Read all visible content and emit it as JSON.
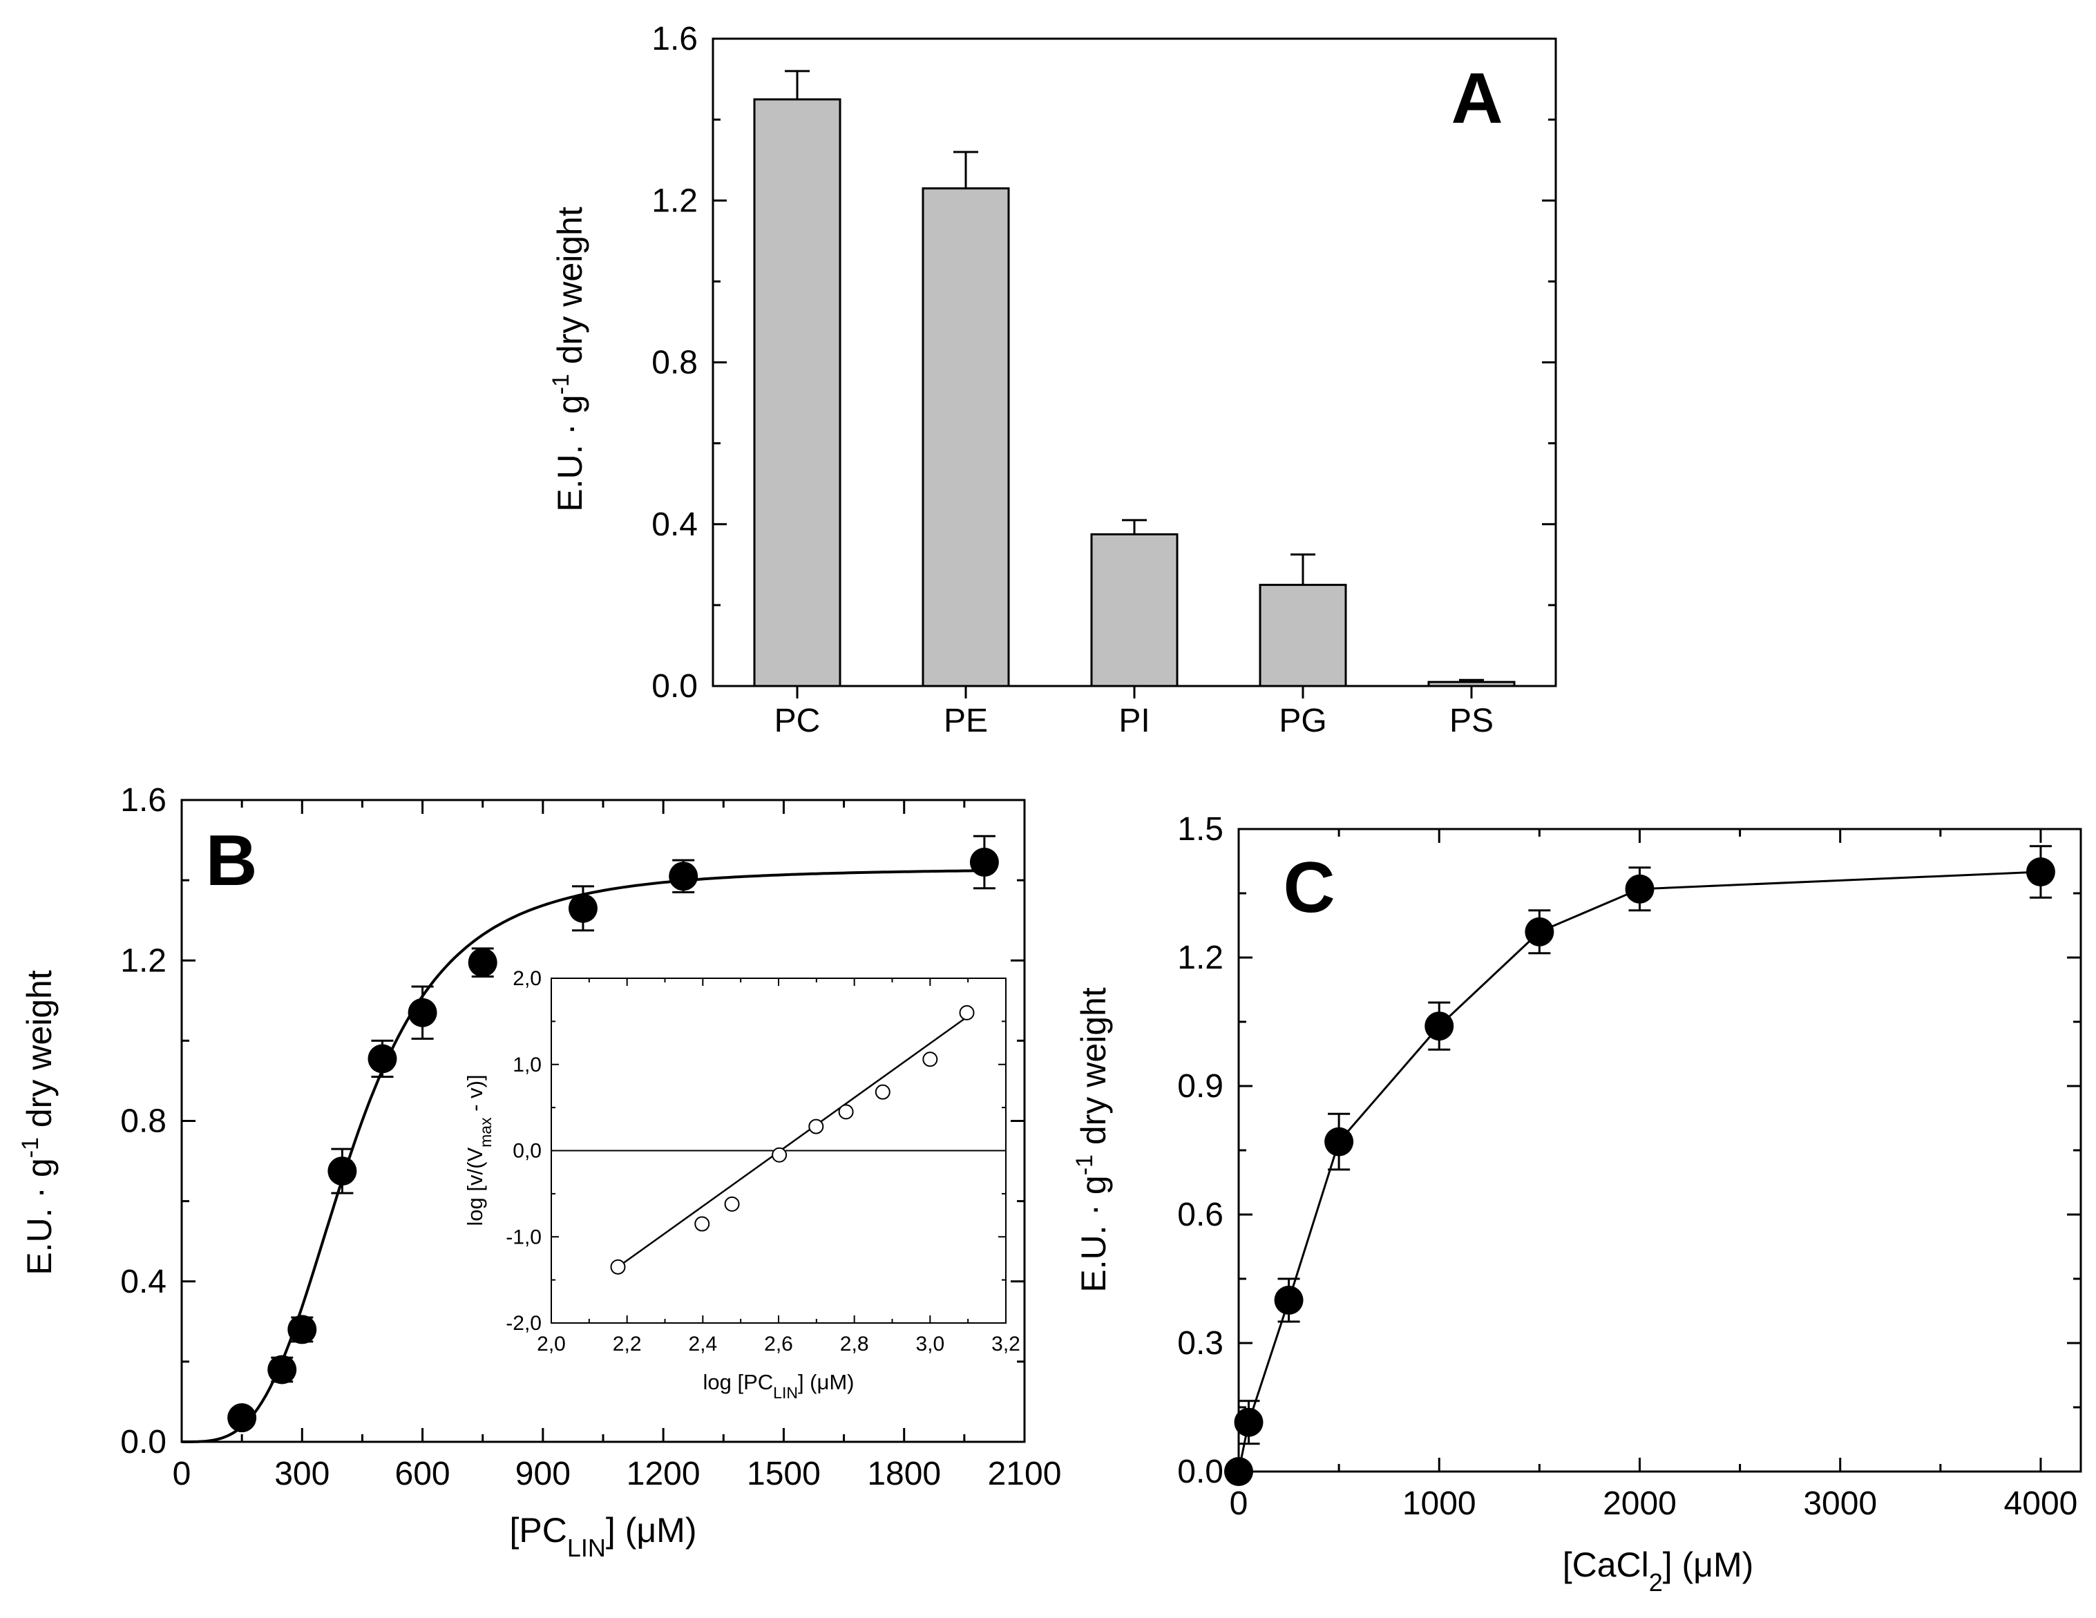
{
  "chart_data": [
    {
      "type": "bar",
      "panel": "A",
      "categories": [
        "PC",
        "PE",
        "PI",
        "PG",
        "PS"
      ],
      "values": [
        1.45,
        1.23,
        0.375,
        0.25,
        0.01
      ],
      "errors": [
        0.07,
        0.09,
        0.035,
        0.075,
        0.005
      ],
      "ylabel": "E.U. · g-1 dry weight",
      "ylabel_parts": {
        "main": "E.U. · g",
        "sup": "-1",
        "rest": " dry weight"
      },
      "ylim": [
        0.0,
        1.6
      ],
      "yticks": [
        "0.0",
        "0.4",
        "0.8",
        "1.2",
        "1.6"
      ],
      "bar_color": "#c0c0c0"
    },
    {
      "type": "scatter",
      "panel": "B",
      "x": [
        150,
        250,
        300,
        400,
        500,
        600,
        750,
        1000,
        1250,
        2000
      ],
      "y": [
        0.06,
        0.18,
        0.28,
        0.675,
        0.955,
        1.07,
        1.195,
        1.33,
        1.41,
        1.445
      ],
      "errors": [
        0.02,
        0.03,
        0.03,
        0.055,
        0.045,
        0.065,
        0.035,
        0.055,
        0.04,
        0.065
      ],
      "fit": {
        "model": "hill",
        "vmax": 1.43,
        "k": 420,
        "n": 3.5
      },
      "xlabel_parts": {
        "main": "[PC",
        "sub": "LIN",
        "rest": "] (μM)"
      },
      "ylabel_parts": {
        "main": "E.U. · g",
        "sup": "-1",
        "rest": " dry weight"
      },
      "xlim": [
        0,
        2100
      ],
      "ylim": [
        0.0,
        1.6
      ],
      "xticks": [
        "0",
        "300",
        "600",
        "900",
        "1200",
        "1500",
        "1800",
        "2100"
      ],
      "yticks": [
        "0.0",
        "0.4",
        "0.8",
        "1.2",
        "1.6"
      ],
      "inset": {
        "type": "scatter",
        "x": [
          2.176,
          2.398,
          2.477,
          2.602,
          2.699,
          2.778,
          2.875,
          3.0,
          3.097
        ],
        "y": [
          -1.35,
          -0.85,
          -0.62,
          -0.05,
          0.28,
          0.45,
          0.68,
          1.06,
          1.6
        ],
        "fit_line": {
          "x": [
            2.176,
            3.097
          ],
          "y": [
            -1.35,
            1.55
          ]
        },
        "xlabel_parts": {
          "main": "log [PC",
          "sub": "LIN",
          "rest": "] (μM)"
        },
        "ylabel_parts": {
          "main": "log [v/(V",
          "sub": "max",
          "rest": " - v)]"
        },
        "xlim": [
          2.0,
          3.2
        ],
        "ylim": [
          -2.0,
          2.0
        ],
        "xticks": [
          "2,0",
          "2,2",
          "2,4",
          "2,6",
          "2,8",
          "3,0",
          "3,2"
        ],
        "yticks": [
          "-2,0",
          "-1,0",
          "0,0",
          "1,0",
          "2,0"
        ]
      }
    },
    {
      "type": "line",
      "panel": "C",
      "x": [
        0,
        50,
        250,
        500,
        1000,
        1500,
        2000,
        4000
      ],
      "y": [
        0.0,
        0.115,
        0.4,
        0.77,
        1.04,
        1.26,
        1.36,
        1.4
      ],
      "errors": [
        0.0,
        0.05,
        0.05,
        0.065,
        0.055,
        0.05,
        0.05,
        0.06
      ],
      "xlabel_parts": {
        "main": "[CaCl",
        "sub": "2",
        "rest": "] (μM)"
      },
      "ylabel_parts": {
        "main": "E.U. · g",
        "sup": "-1",
        "rest": " dry weight"
      },
      "xlim": [
        0,
        4200
      ],
      "ylim": [
        0.0,
        1.5
      ],
      "xticks": [
        "0",
        "1000",
        "2000",
        "3000",
        "4000"
      ],
      "yticks": [
        "0.0",
        "0.3",
        "0.6",
        "0.9",
        "1.2",
        "1.5"
      ]
    }
  ],
  "labels": {
    "panel_a": "A",
    "panel_b": "B",
    "panel_c": "C"
  }
}
